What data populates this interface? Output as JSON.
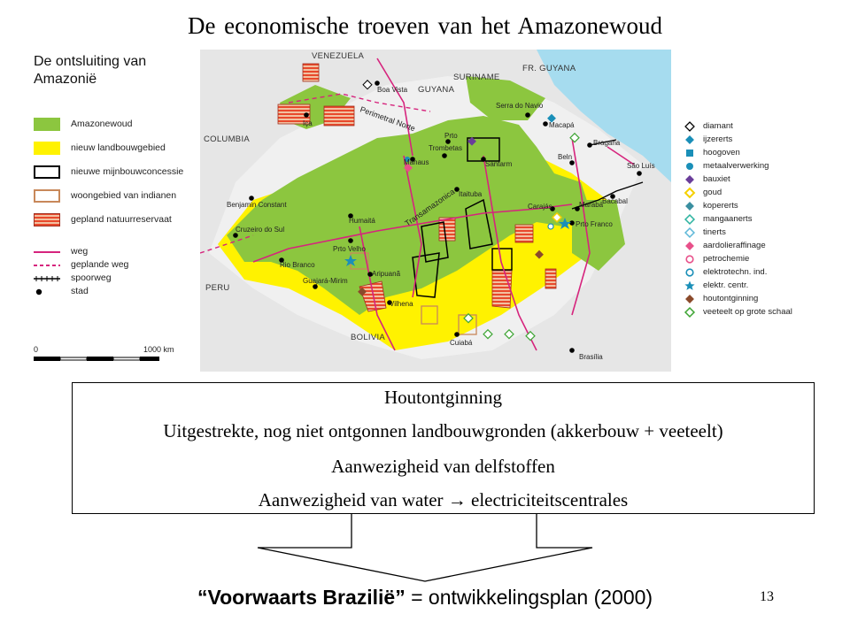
{
  "title": "De economische troeven van het Amazonewoud",
  "map": {
    "heading_lines": [
      "De ontsluiting van",
      "Amazonië"
    ],
    "area_legend": [
      {
        "label": "Amazonewoud",
        "color": "#8cc63f",
        "style": "fill"
      },
      {
        "label": "nieuw landbouwgebied",
        "color": "#fff200",
        "style": "fill"
      },
      {
        "label": "nieuwe mijnbouwconcessie",
        "color": "#000000",
        "style": "outline"
      },
      {
        "label": "woongebied van indianen",
        "color": "#c8885a",
        "style": "outline"
      },
      {
        "label": "gepland natuurreservaat",
        "color": "#e8492c",
        "style": "hatched"
      }
    ],
    "line_legend": [
      {
        "label": "weg",
        "color": "#d6247d",
        "style": "solid"
      },
      {
        "label": "geplande weg",
        "color": "#d6247d",
        "style": "dashed"
      },
      {
        "label": "spoorweg",
        "color": "#000000",
        "style": "rail"
      },
      {
        "label": "stad",
        "color": "#000000",
        "style": "dot"
      }
    ],
    "scale": {
      "start": "0",
      "end": "1000 km"
    },
    "countries": [
      "VENEZUELA",
      "SURINAME",
      "FR. GUYANA",
      "GUYANA",
      "COLUMBIA",
      "PERU",
      "BOLIVIA"
    ],
    "place_labels": [
      "Perimetral Norte",
      "Transamazonica"
    ],
    "cities": [
      "Boa Vista",
      "Iça",
      "Serra do Navio",
      "Macapá",
      "Prto",
      "Trombetas",
      "Manaus",
      "Santarm",
      "Itaituba",
      "Bragana",
      "Beln",
      "São Luís",
      "Bacabal",
      "Carajás",
      "Marabá",
      "Prto Franco",
      "Benjamin Constant",
      "Cruzeiro do Sul",
      "Humaitá",
      "Prto Velho",
      "Rio Branco",
      "Guajará-Mirim",
      "Aripuanã",
      "Vilhena",
      "Cuiabá",
      "Brasília"
    ],
    "symbol_legend": [
      {
        "label": "diamant",
        "shape": "diamond-outline",
        "color": "#000000"
      },
      {
        "label": "ijzererts",
        "shape": "diamond",
        "color": "#1a8fb8"
      },
      {
        "label": "hoogoven",
        "shape": "square",
        "color": "#1a8fb8"
      },
      {
        "label": "metaalverwerking",
        "shape": "circle",
        "color": "#1a8fb8"
      },
      {
        "label": "bauxiet",
        "shape": "diamond",
        "color": "#6a3d9a"
      },
      {
        "label": "goud",
        "shape": "diamond-outline",
        "color": "#f5d000"
      },
      {
        "label": "kopererts",
        "shape": "diamond",
        "color": "#3a8fa0"
      },
      {
        "label": "mangaanerts",
        "shape": "diamond-outline",
        "color": "#2db3a0"
      },
      {
        "label": "tinerts",
        "shape": "diamond-outline",
        "color": "#5fb8d8"
      },
      {
        "label": "aardolieraffinage",
        "shape": "diamond",
        "color": "#e8508a"
      },
      {
        "label": "petrochemie",
        "shape": "circle-outline",
        "color": "#e8508a"
      },
      {
        "label": "elektrotechn. ind.",
        "shape": "circle-outline",
        "color": "#1a8fb8"
      },
      {
        "label": "elektr. centr.",
        "shape": "star",
        "color": "#1a8fb8"
      },
      {
        "label": "houtontginning",
        "shape": "diamond",
        "color": "#8b4a2b"
      },
      {
        "label": "veeteelt op grote schaal",
        "shape": "diamond-outline",
        "color": "#3fa535"
      }
    ]
  },
  "textbox": {
    "lines": [
      "Houtontginning",
      "Uitgestrekte, nog niet ontgonnen landbouwgronden (akkerbouw + veeteelt)",
      "Aanwezigheid van delfstoffen",
      "Aanwezigheid van water  →  electriciteitscentrales"
    ]
  },
  "footer": {
    "bold": "“Voorwaarts Brazilië”",
    "rest": " = ontwikkelingsplan (2000)"
  },
  "page_number": "13"
}
